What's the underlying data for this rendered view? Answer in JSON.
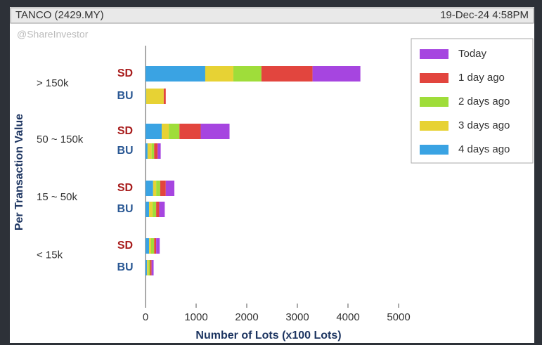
{
  "header": {
    "title": "TANCO (2429.MY)",
    "timestamp": "19-Dec-24 4:58PM",
    "watermark": "@ShareInvestor"
  },
  "chart_data": {
    "type": "stacked-barh",
    "groups": [
      "> 150k",
      "50 ~ 150k",
      "15 ~ 50k",
      "< 15k"
    ],
    "categories": [
      "SD",
      "BU",
      "SD",
      "BU",
      "SD",
      "BU",
      "SD",
      "BU"
    ],
    "series": [
      {
        "name": "4 days ago",
        "color": "#3aa3e3",
        "values": [
          1180,
          10,
          320,
          40,
          150,
          70,
          70,
          30
        ]
      },
      {
        "name": "3 days ago",
        "color": "#e7d234",
        "values": [
          555,
          350,
          140,
          80,
          60,
          70,
          40,
          30
        ]
      },
      {
        "name": "2 days ago",
        "color": "#9fdd3a",
        "values": [
          555,
          0,
          210,
          50,
          80,
          70,
          60,
          30
        ]
      },
      {
        "name": "1 day ago",
        "color": "#e2453e",
        "values": [
          1010,
          40,
          420,
          70,
          110,
          60,
          40,
          30
        ]
      },
      {
        "name": "Today",
        "color": "#a645e0",
        "values": [
          945,
          0,
          570,
          60,
          170,
          110,
          70,
          40
        ]
      }
    ],
    "xlim": [
      0,
      5000
    ],
    "xticks": [
      0,
      1000,
      2000,
      3000,
      4000,
      5000
    ],
    "xlabel": "Number of Lots (x100 Lots)",
    "ylabel": "Per Transaction Value",
    "legend": "upper right"
  }
}
